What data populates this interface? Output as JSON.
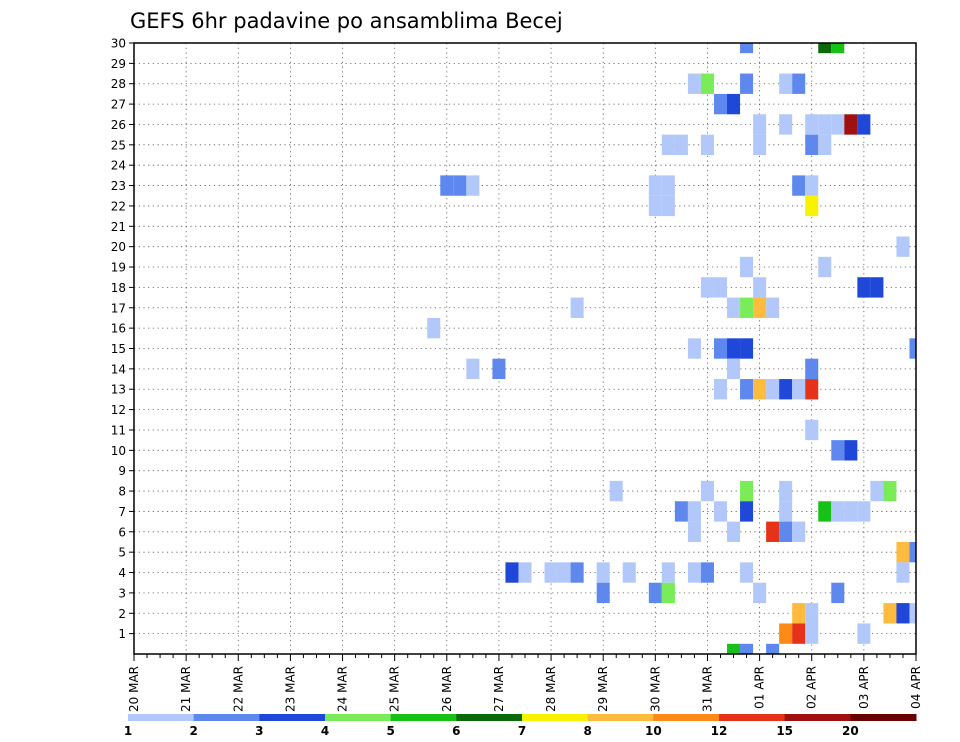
{
  "chart_data": {
    "type": "heatmap",
    "title": "GEFS 6hr padavine po ansamblima Becej",
    "x_ticks": [
      "20 MAR",
      "21 MAR",
      "22 MAR",
      "23 MAR",
      "24 MAR",
      "25 MAR",
      "26 MAR",
      "27 MAR",
      "28 MAR",
      "29 MAR",
      "30 MAR",
      "31 MAR",
      "01 APR",
      "02 APR",
      "03 APR",
      "04 APR"
    ],
    "x_range": [
      "20 MAR 00z",
      "04 APR 00z"
    ],
    "time_step_hours": 6,
    "y_ticks": [
      1,
      2,
      3,
      4,
      5,
      6,
      7,
      8,
      9,
      10,
      11,
      12,
      13,
      14,
      15,
      16,
      17,
      18,
      19,
      20,
      21,
      22,
      23,
      24,
      25,
      26,
      27,
      28,
      29,
      30
    ],
    "y_range": [
      0,
      30
    ],
    "grid": true,
    "colorbar": {
      "labels": [
        "1",
        "2",
        "3",
        "4",
        "5",
        "6",
        "7",
        "8",
        "10",
        "12",
        "15",
        "20"
      ],
      "colors": [
        "#b3c8fa",
        "#5e88ee",
        "#1f48d8",
        "#7aec5a",
        "#16c216",
        "#0a6a0a",
        "#f7f200",
        "#fdbc3e",
        "#fc8a14",
        "#e63218",
        "#a01010",
        "#6a0000"
      ]
    },
    "cells_note": "member, time (days after 20 MAR 00z), class index into colorbar.colors",
    "cells": [
      [
        30,
        11.75,
        1
      ],
      [
        30,
        13.25,
        5
      ],
      [
        30,
        13.5,
        4
      ],
      [
        28,
        10.75,
        0
      ],
      [
        28,
        11.0,
        3
      ],
      [
        28,
        11.75,
        1
      ],
      [
        28,
        12.5,
        0
      ],
      [
        28,
        12.75,
        1
      ],
      [
        27,
        11.25,
        1
      ],
      [
        27,
        11.5,
        2
      ],
      [
        26,
        12.0,
        0
      ],
      [
        26,
        12.5,
        0
      ],
      [
        26,
        13.0,
        0
      ],
      [
        26,
        13.25,
        0
      ],
      [
        26,
        13.5,
        0
      ],
      [
        26,
        13.75,
        10
      ],
      [
        26,
        14.0,
        2
      ],
      [
        25,
        10.25,
        0
      ],
      [
        25,
        10.5,
        0
      ],
      [
        25,
        11.0,
        0
      ],
      [
        25,
        12.0,
        0
      ],
      [
        25,
        13.0,
        1
      ],
      [
        25,
        13.25,
        0
      ],
      [
        23,
        6.0,
        1
      ],
      [
        23,
        6.25,
        1
      ],
      [
        23,
        6.5,
        0
      ],
      [
        23,
        10.0,
        0
      ],
      [
        23,
        10.25,
        0
      ],
      [
        23,
        12.75,
        1
      ],
      [
        23,
        13.0,
        0
      ],
      [
        22,
        10.0,
        0
      ],
      [
        22,
        10.25,
        0
      ],
      [
        22,
        13.0,
        6
      ],
      [
        20,
        14.75,
        0
      ],
      [
        19,
        11.75,
        0
      ],
      [
        19,
        13.25,
        0
      ],
      [
        18,
        11.0,
        0
      ],
      [
        18,
        11.25,
        0
      ],
      [
        18,
        12.0,
        0
      ],
      [
        18,
        14.0,
        2
      ],
      [
        18,
        14.25,
        2
      ],
      [
        17,
        8.5,
        0
      ],
      [
        17,
        11.5,
        0
      ],
      [
        17,
        11.75,
        3
      ],
      [
        17,
        12.0,
        7
      ],
      [
        17,
        12.25,
        0
      ],
      [
        16,
        5.75,
        0
      ],
      [
        15,
        10.75,
        0
      ],
      [
        15,
        11.25,
        1
      ],
      [
        15,
        11.5,
        2
      ],
      [
        15,
        11.75,
        2
      ],
      [
        15,
        15.0,
        1
      ],
      [
        14,
        6.5,
        0
      ],
      [
        14,
        7.0,
        1
      ],
      [
        14,
        11.5,
        0
      ],
      [
        14,
        13.0,
        1
      ],
      [
        13,
        11.25,
        0
      ],
      [
        13,
        11.75,
        1
      ],
      [
        13,
        12.0,
        7
      ],
      [
        13,
        12.25,
        0
      ],
      [
        13,
        12.5,
        2
      ],
      [
        13,
        12.75,
        0
      ],
      [
        13,
        13.0,
        9
      ],
      [
        11,
        13.0,
        0
      ],
      [
        10,
        13.5,
        1
      ],
      [
        10,
        13.75,
        2
      ],
      [
        8,
        9.25,
        0
      ],
      [
        8,
        11.0,
        0
      ],
      [
        8,
        11.75,
        3
      ],
      [
        8,
        12.5,
        0
      ],
      [
        8,
        14.25,
        0
      ],
      [
        8,
        14.5,
        3
      ],
      [
        7,
        10.5,
        1
      ],
      [
        7,
        10.75,
        0
      ],
      [
        7,
        11.25,
        0
      ],
      [
        7,
        11.75,
        2
      ],
      [
        7,
        12.5,
        0
      ],
      [
        7,
        13.25,
        4
      ],
      [
        7,
        13.5,
        0
      ],
      [
        7,
        13.75,
        0
      ],
      [
        7,
        14.0,
        0
      ],
      [
        6,
        10.75,
        0
      ],
      [
        6,
        11.5,
        0
      ],
      [
        6,
        12.25,
        9
      ],
      [
        6,
        12.5,
        1
      ],
      [
        6,
        12.75,
        0
      ],
      [
        5,
        14.75,
        7
      ],
      [
        5,
        15.0,
        1
      ],
      [
        4,
        7.25,
        2
      ],
      [
        4,
        7.5,
        0
      ],
      [
        4,
        8.0,
        0
      ],
      [
        4,
        8.25,
        0
      ],
      [
        4,
        8.5,
        1
      ],
      [
        4,
        9.0,
        0
      ],
      [
        4,
        9.5,
        0
      ],
      [
        4,
        10.25,
        0
      ],
      [
        4,
        10.75,
        0
      ],
      [
        4,
        11.0,
        1
      ],
      [
        4,
        11.75,
        0
      ],
      [
        4,
        14.75,
        0
      ],
      [
        3,
        9.0,
        1
      ],
      [
        3,
        10.0,
        1
      ],
      [
        3,
        10.25,
        3
      ],
      [
        3,
        12.0,
        0
      ],
      [
        3,
        13.5,
        1
      ],
      [
        2,
        12.75,
        7
      ],
      [
        2,
        13.0,
        0
      ],
      [
        2,
        14.5,
        7
      ],
      [
        2,
        14.75,
        2
      ],
      [
        2,
        15.0,
        0
      ],
      [
        1,
        12.5,
        8
      ],
      [
        1,
        12.75,
        9
      ],
      [
        1,
        13.0,
        0
      ],
      [
        1,
        14.0,
        0
      ],
      [
        0,
        11.5,
        4
      ],
      [
        0,
        11.75,
        1
      ],
      [
        0,
        12.25,
        1
      ]
    ]
  }
}
